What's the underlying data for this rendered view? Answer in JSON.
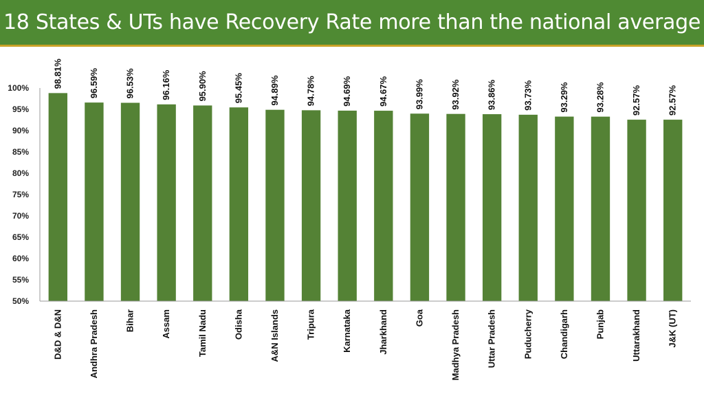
{
  "header": {
    "title": "18 States & UTs have Recovery Rate more than the national average"
  },
  "colors": {
    "header_bg": "#4f8a33",
    "bar": "#548235",
    "accent_line": "#c9a227"
  },
  "chart_data": {
    "type": "bar",
    "title": "18 States & UTs have Recovery Rate more than the national average",
    "categories": [
      "D&D & D&N",
      "Andhra Pradesh",
      "Bihar",
      "Assam",
      "Tamil Nadu",
      "Odisha",
      "A&N Islands",
      "Tripura",
      "Karnataka",
      "Jharkhand",
      "Goa",
      "Madhya Pradesh",
      "Uttar Pradesh",
      "Puducherry",
      "Chandigarh",
      "Punjab",
      "Uttarakhand",
      "J&K (UT)"
    ],
    "values": [
      98.81,
      96.59,
      96.53,
      96.16,
      95.9,
      95.45,
      94.89,
      94.78,
      94.69,
      94.67,
      93.99,
      93.92,
      93.86,
      93.73,
      93.29,
      93.28,
      92.57,
      92.57
    ],
    "data_labels": [
      "98.81%",
      "96.59%",
      "96.53%",
      "96.16%",
      "95.90%",
      "95.45%",
      "94.89%",
      "94.78%",
      "94.69%",
      "94.67%",
      "93.99%",
      "93.92%",
      "93.86%",
      "93.73%",
      "93.29%",
      "93.28%",
      "92.57%",
      "92.57%"
    ],
    "ylim": [
      50,
      100
    ],
    "yticks": [
      "50%",
      "55%",
      "60%",
      "65%",
      "70%",
      "75%",
      "80%",
      "85%",
      "90%",
      "95%",
      "100%"
    ],
    "ytick_values": [
      50,
      55,
      60,
      65,
      70,
      75,
      80,
      85,
      90,
      95,
      100
    ],
    "grid": false,
    "legend": "none"
  }
}
